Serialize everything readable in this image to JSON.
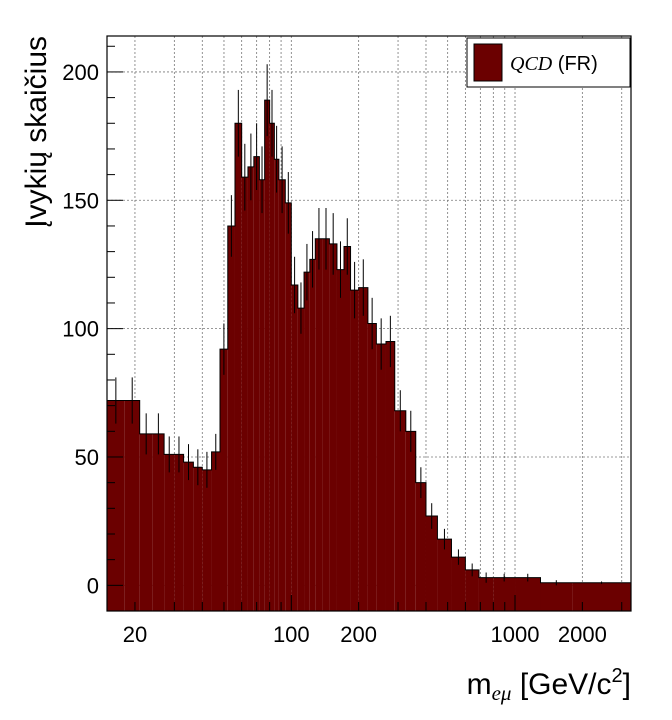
{
  "chart_data": {
    "type": "bar",
    "subtype": "histogram",
    "x_scale": "log",
    "xlim": [
      15,
      3300
    ],
    "ylim": [
      -10,
      214
    ],
    "fill_color": "#6b0000",
    "edge_color": "#000000",
    "grid": true,
    "ylabel": "Įvykių skaičius",
    "xlabel": {
      "main": "m",
      "sub": "eμ",
      "unit_open": " [GeV/c",
      "sup": "2",
      "unit_close": "]"
    },
    "y_ticks": [
      "0",
      "50",
      "100",
      "150",
      "200"
    ],
    "y_tick_values": [
      0,
      50,
      100,
      150,
      200
    ],
    "x_ticks": [
      "20",
      "100",
      "200",
      "1000",
      "2000"
    ],
    "x_tick_values": [
      20,
      100,
      200,
      1000,
      2000
    ],
    "legend": {
      "position": "top-right",
      "entries": [
        {
          "qcd": "QCD",
          "label": " (FR)",
          "color": "#6b0000"
        }
      ]
    },
    "series": [
      {
        "bins": [
          {
            "lo": 15,
            "hi": 18,
            "value": 72,
            "err": 9
          },
          {
            "lo": 18,
            "hi": 21,
            "value": 72,
            "err": 9
          },
          {
            "lo": 21,
            "hi": 24,
            "value": 59,
            "err": 8
          },
          {
            "lo": 24,
            "hi": 27,
            "value": 59,
            "err": 8
          },
          {
            "lo": 27,
            "hi": 30,
            "value": 51,
            "err": 7
          },
          {
            "lo": 30,
            "hi": 33,
            "value": 51,
            "err": 7
          },
          {
            "lo": 33,
            "hi": 36.5,
            "value": 48,
            "err": 7
          },
          {
            "lo": 36.5,
            "hi": 40,
            "value": 46,
            "err": 7
          },
          {
            "lo": 40,
            "hi": 44,
            "value": 45,
            "err": 7
          },
          {
            "lo": 44,
            "hi": 48,
            "value": 52,
            "err": 7
          },
          {
            "lo": 48,
            "hi": 52,
            "value": 92,
            "err": 10
          },
          {
            "lo": 52,
            "hi": 56,
            "value": 140,
            "err": 12
          },
          {
            "lo": 56,
            "hi": 60,
            "value": 180,
            "err": 13
          },
          {
            "lo": 60,
            "hi": 64,
            "value": 159,
            "err": 13
          },
          {
            "lo": 64,
            "hi": 68,
            "value": 163,
            "err": 13
          },
          {
            "lo": 68,
            "hi": 72,
            "value": 167,
            "err": 13
          },
          {
            "lo": 72,
            "hi": 76,
            "value": 158,
            "err": 13
          },
          {
            "lo": 76,
            "hi": 80,
            "value": 189,
            "err": 14
          },
          {
            "lo": 80,
            "hi": 84,
            "value": 180,
            "err": 13
          },
          {
            "lo": 84,
            "hi": 88,
            "value": 166,
            "err": 13
          },
          {
            "lo": 88,
            "hi": 94,
            "value": 158,
            "err": 13
          },
          {
            "lo": 94,
            "hi": 100,
            "value": 149,
            "err": 12
          },
          {
            "lo": 100,
            "hi": 107,
            "value": 117,
            "err": 11
          },
          {
            "lo": 107,
            "hi": 114,
            "value": 108,
            "err": 10
          },
          {
            "lo": 114,
            "hi": 121,
            "value": 122,
            "err": 11
          },
          {
            "lo": 121,
            "hi": 128,
            "value": 127,
            "err": 11
          },
          {
            "lo": 128,
            "hi": 138,
            "value": 135,
            "err": 12
          },
          {
            "lo": 138,
            "hi": 148,
            "value": 135,
            "err": 12
          },
          {
            "lo": 148,
            "hi": 160,
            "value": 133,
            "err": 12
          },
          {
            "lo": 160,
            "hi": 172,
            "value": 123,
            "err": 11
          },
          {
            "lo": 172,
            "hi": 184,
            "value": 132,
            "err": 11
          },
          {
            "lo": 184,
            "hi": 200,
            "value": 115,
            "err": 11
          },
          {
            "lo": 200,
            "hi": 220,
            "value": 116,
            "err": 11
          },
          {
            "lo": 220,
            "hi": 240,
            "value": 102,
            "err": 10
          },
          {
            "lo": 240,
            "hi": 265,
            "value": 94,
            "err": 10
          },
          {
            "lo": 265,
            "hi": 290,
            "value": 95,
            "err": 10
          },
          {
            "lo": 290,
            "hi": 325,
            "value": 68,
            "err": 8
          },
          {
            "lo": 325,
            "hi": 360,
            "value": 60,
            "err": 8
          },
          {
            "lo": 360,
            "hi": 400,
            "value": 40,
            "err": 6
          },
          {
            "lo": 400,
            "hi": 450,
            "value": 27,
            "err": 5
          },
          {
            "lo": 450,
            "hi": 520,
            "value": 18,
            "err": 4
          },
          {
            "lo": 520,
            "hi": 600,
            "value": 11,
            "err": 3
          },
          {
            "lo": 600,
            "hi": 690,
            "value": 6,
            "err": 2.5
          },
          {
            "lo": 690,
            "hi": 800,
            "value": 3,
            "err": 2
          },
          {
            "lo": 800,
            "hi": 1000,
            "value": 3,
            "err": 1.5
          },
          {
            "lo": 1000,
            "hi": 1300,
            "value": 3,
            "err": 1.5
          },
          {
            "lo": 1300,
            "hi": 1800,
            "value": 1,
            "err": 1
          },
          {
            "lo": 1800,
            "hi": 3300,
            "value": 1,
            "err": 0.5
          }
        ]
      }
    ]
  }
}
